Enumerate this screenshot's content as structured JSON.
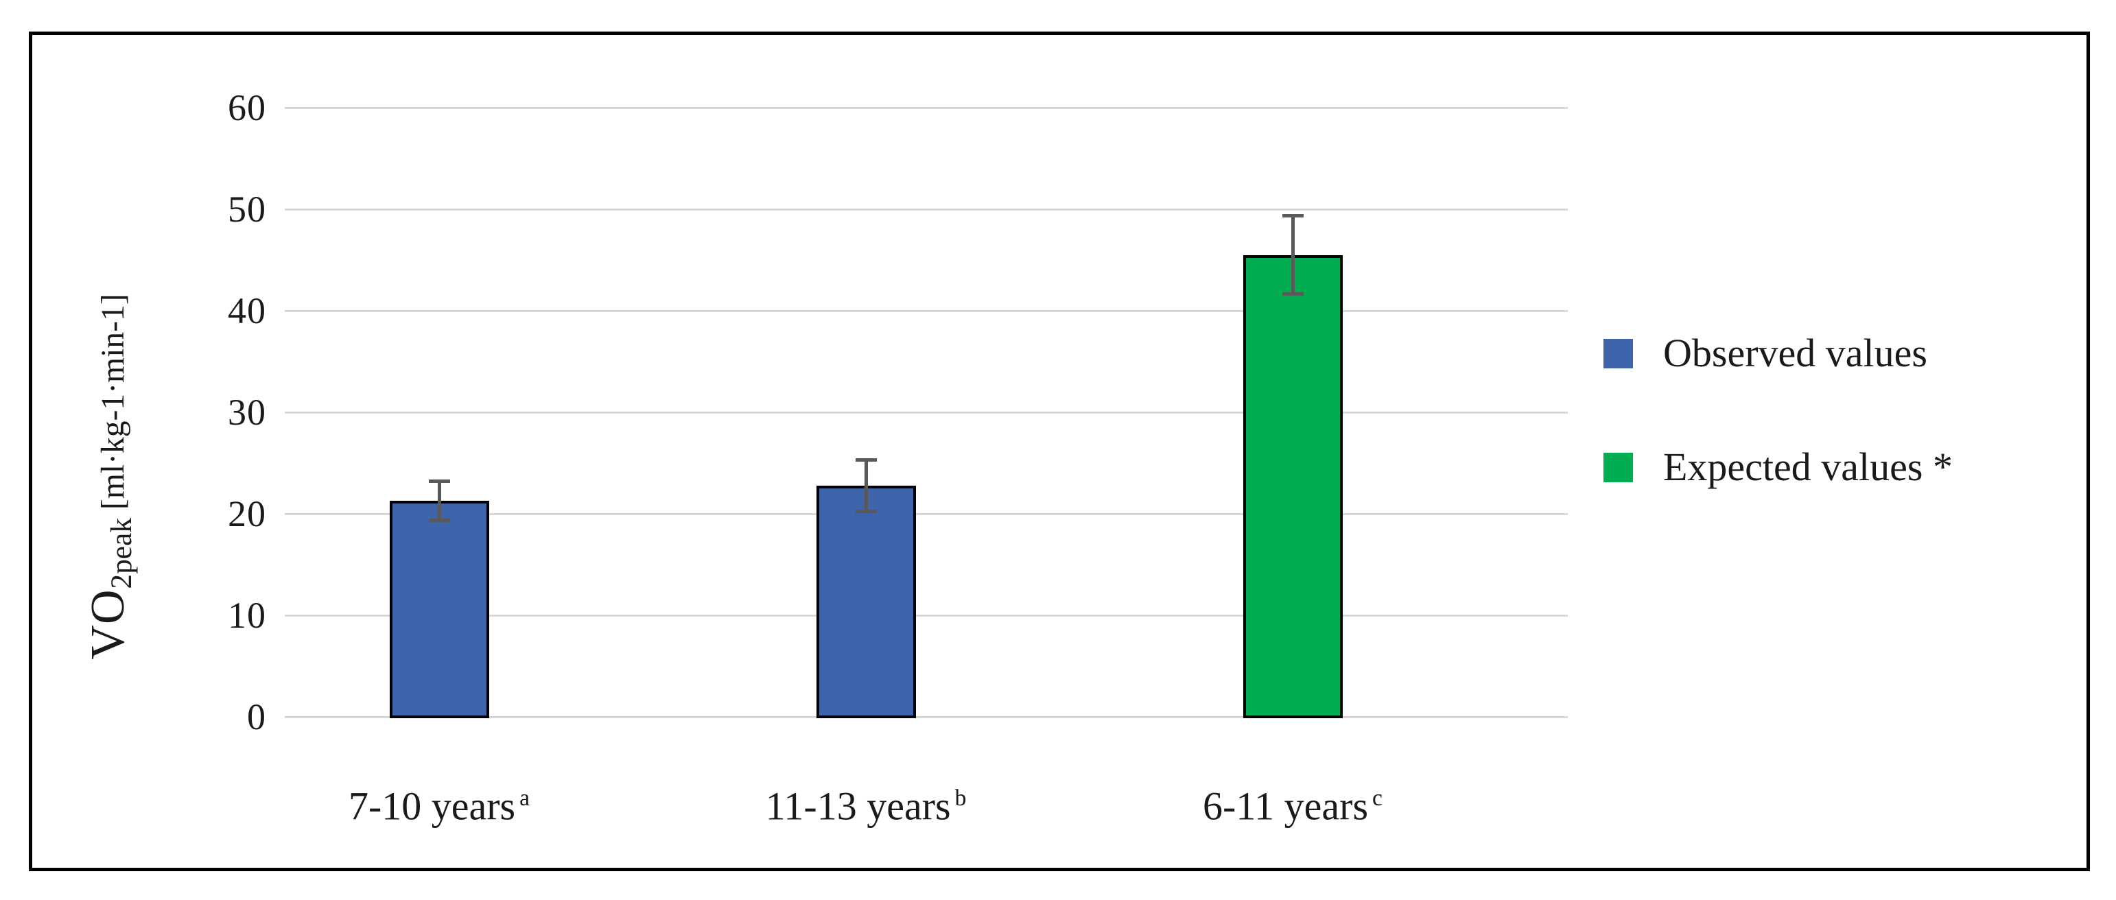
{
  "figure": {
    "background": "#ffffff",
    "frame_border_color": "#000000"
  },
  "chart_data": {
    "type": "bar",
    "title": "",
    "y_axis": {
      "label_main": "VO",
      "label_sub": "2peak",
      "label_unit": "[ml·kg-1·min-1]",
      "ticks": [
        0,
        10,
        20,
        30,
        40,
        50,
        60
      ],
      "range": [
        0,
        60
      ],
      "gridlines": true
    },
    "x_axis": {
      "categories": [
        {
          "label": "7-10 years",
          "superscript": "a"
        },
        {
          "label": "11-13 years",
          "superscript": "b"
        },
        {
          "label": "6-11 years",
          "superscript": "c"
        }
      ]
    },
    "series": [
      {
        "name": "Observed values",
        "color": "#3E64AC",
        "border_color": "#000000",
        "values": [
          21.3,
          22.8,
          null
        ],
        "errors": [
          1.9,
          2.5,
          null
        ]
      },
      {
        "name": "Expected values *",
        "color": "#00AD51",
        "border_color": "#000000",
        "values": [
          null,
          null,
          45.5
        ],
        "errors": [
          null,
          null,
          3.8
        ]
      }
    ],
    "error_bar_color": "#595959",
    "gridline_color": "#D9D9D9",
    "legend": {
      "position": "right",
      "items": [
        {
          "label": "Observed values",
          "color": "#3E64AC"
        },
        {
          "label": "Expected values *",
          "color": "#00AD51"
        }
      ]
    }
  }
}
